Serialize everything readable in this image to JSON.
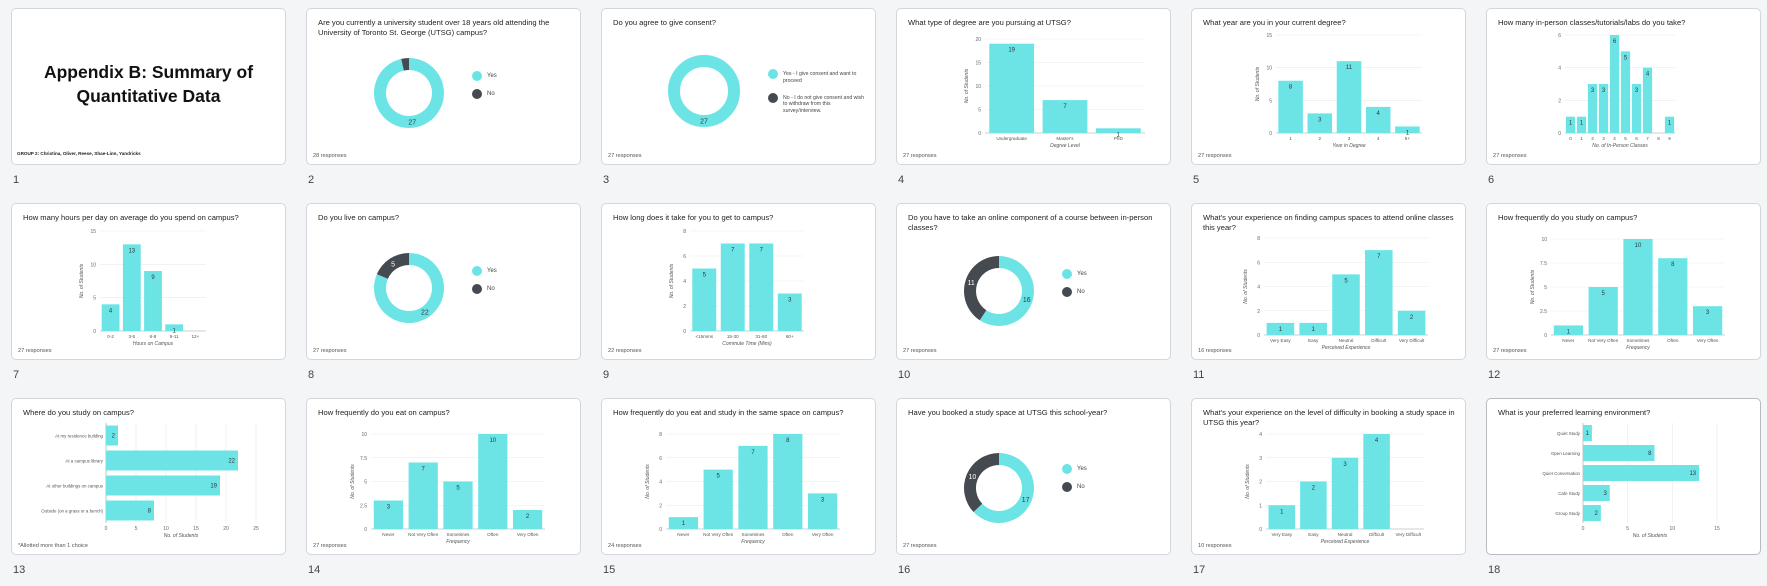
{
  "colors": {
    "teal": "#6ce4e6",
    "dark": "#454a51",
    "grid": "#e9eaec",
    "axis": "#9aa0a6"
  },
  "cover": {
    "title_line1": "Appendix B: Summary of",
    "title_line2": "Quantitative Data",
    "group": "GROUP 2: Christina, Oliver, Reese, Shae-Linn, Yandricks"
  },
  "legend_labels": {
    "yes": "Yes",
    "no": "No"
  },
  "slides": [
    {
      "number": "1"
    },
    {
      "number": "2",
      "question": "Are you currently a university student over 18 years old attending the University of Toronto St. George (UTSG) campus?",
      "responses": "28 responses"
    },
    {
      "number": "3",
      "question": "Do you agree to give consent?",
      "responses": "27 responses",
      "legend": [
        "Yes - I give consent and want to proceed",
        "No - I do not give consent and wish to withdraw from this survey/interview."
      ]
    },
    {
      "number": "4",
      "question": "What type of degree are you pursuing at UTSG?",
      "responses": "27 responses"
    },
    {
      "number": "5",
      "question": "What year are you in your current degree?",
      "responses": "27 responses"
    },
    {
      "number": "6",
      "question": "How many in-person classes/tutorials/labs do you take?",
      "responses": "27 responses"
    },
    {
      "number": "7",
      "question": "How many hours per day on average do you spend on campus?",
      "responses": "27 responses"
    },
    {
      "number": "8",
      "question": "Do you live on campus?",
      "responses": "27 responses"
    },
    {
      "number": "9",
      "question": "How long does it take for you to get to campus?",
      "responses": "22 responses"
    },
    {
      "number": "10",
      "question": "Do you have to take an online component of a course between in-person classes?",
      "responses": "27 responses"
    },
    {
      "number": "11",
      "question": "What's your experience on finding campus spaces to attend online classes this year?",
      "responses": "16 responses"
    },
    {
      "number": "12",
      "question": "How frequently do you study on campus?",
      "responses": "27 responses"
    },
    {
      "number": "13",
      "question": "Where do you study on campus?",
      "note": "*Allotted more than 1 choice"
    },
    {
      "number": "14",
      "question": "How frequently do you eat on campus?",
      "responses": "27 responses"
    },
    {
      "number": "15",
      "question": "How frequently do you eat and study in the same space on campus?",
      "responses": "24 responses"
    },
    {
      "number": "16",
      "question": "Have you booked a study space at UTSG this school-year?",
      "responses": "27 responses"
    },
    {
      "number": "17",
      "question": "What's your experience on the level of difficulty in booking a study space in UTSG this year?",
      "responses": "10 responses"
    },
    {
      "number": "18",
      "question": "What is your preferred learning environment?"
    }
  ],
  "chart_data": [
    {
      "slide": 2,
      "type": "pie",
      "labels": [
        "Yes",
        "No"
      ],
      "values": [
        27,
        1
      ],
      "data_labels": [
        "27",
        ""
      ]
    },
    {
      "slide": 3,
      "type": "pie",
      "labels": [
        "Yes - I give consent and want to proceed",
        "No - I do not give consent and wish to withdraw from this survey/interview."
      ],
      "values": [
        27,
        0
      ],
      "data_labels": [
        "27",
        ""
      ]
    },
    {
      "slide": 4,
      "type": "bar",
      "categories": [
        "Undergraduate",
        "Master's",
        "PhD"
      ],
      "values": [
        19,
        7,
        1
      ],
      "ylim": [
        0,
        20
      ],
      "yticks": [
        "0",
        "5",
        "10",
        "15",
        "20"
      ],
      "xlabel": "Degree Level",
      "ylabel": "No. of Students"
    },
    {
      "slide": 5,
      "type": "bar",
      "categories": [
        "1",
        "2",
        "3",
        "4",
        "5+"
      ],
      "values": [
        8,
        3,
        11,
        4,
        1
      ],
      "ylim": [
        0,
        15
      ],
      "yticks": [
        "0",
        "5",
        "10",
        "15"
      ],
      "xlabel": "Year in Degree",
      "ylabel": "No. of Students"
    },
    {
      "slide": 6,
      "type": "bar",
      "categories": [
        "0",
        "1",
        "2",
        "3",
        "4",
        "5",
        "6",
        "7",
        "8",
        "9"
      ],
      "values": [
        1,
        1,
        3,
        3,
        6,
        5,
        3,
        4,
        0,
        1
      ],
      "ylim": [
        0,
        6
      ],
      "yticks": [
        "0",
        "2",
        "4",
        "6"
      ],
      "xlabel": "No. of In-Person Classes",
      "ylabel": ""
    },
    {
      "slide": 7,
      "type": "bar",
      "categories": [
        "0-2",
        "3-5",
        "6-8",
        "9-11",
        "12+"
      ],
      "values": [
        4,
        13,
        9,
        1,
        0
      ],
      "ylim": [
        0,
        15
      ],
      "yticks": [
        "0",
        "5",
        "10",
        "15"
      ],
      "xlabel": "Hours on Campus",
      "ylabel": "No. of Students"
    },
    {
      "slide": 8,
      "type": "pie",
      "labels": [
        "Yes",
        "No"
      ],
      "values": [
        22,
        5
      ],
      "data_labels": [
        "22",
        "5"
      ]
    },
    {
      "slide": 9,
      "type": "bar",
      "categories": [
        "<15mins",
        "15-30",
        "31-60",
        "60+"
      ],
      "values": [
        5,
        7,
        7,
        3
      ],
      "ylim": [
        0,
        8
      ],
      "yticks": [
        "0",
        "2",
        "4",
        "6",
        "8"
      ],
      "xlabel": "Commute Time (Mins)",
      "ylabel": "No. of Students"
    },
    {
      "slide": 10,
      "type": "pie",
      "labels": [
        "Yes",
        "No"
      ],
      "values": [
        16,
        11
      ],
      "data_labels": [
        "16",
        "11"
      ]
    },
    {
      "slide": 11,
      "type": "bar",
      "categories": [
        "Very Easy",
        "Easy",
        "Neutral",
        "Difficult",
        "Very Difficult"
      ],
      "values": [
        1,
        1,
        5,
        7,
        2
      ],
      "ylim": [
        0,
        8
      ],
      "yticks": [
        "0",
        "2",
        "4",
        "6",
        "8"
      ],
      "xlabel": "Perceived Experience",
      "ylabel": "No. of Students"
    },
    {
      "slide": 12,
      "type": "bar",
      "categories": [
        "Never",
        "Not Very Often",
        "Sometimes",
        "Often",
        "Very Often"
      ],
      "values": [
        1,
        5,
        10,
        8,
        3
      ],
      "ylim": [
        0,
        10
      ],
      "yticks": [
        "0",
        "2.5",
        "5",
        "7.5",
        "10"
      ],
      "xlabel": "Frequency",
      "ylabel": "No. of Students"
    },
    {
      "slide": 13,
      "type": "hbar",
      "categories": [
        "At my residence building",
        "At a campus library",
        "At other buildings on campus",
        "Outside (on a grass or a bench)"
      ],
      "values": [
        2,
        22,
        19,
        8
      ],
      "xlim": [
        0,
        25
      ],
      "xticks": [
        "0",
        "5",
        "10",
        "15",
        "20",
        "25"
      ],
      "xlabel": "No. of Students"
    },
    {
      "slide": 14,
      "type": "bar",
      "categories": [
        "Never",
        "Not Very Often",
        "Sometimes",
        "Often",
        "Very Often"
      ],
      "values": [
        3,
        7,
        5,
        10,
        2
      ],
      "ylim": [
        0,
        10
      ],
      "yticks": [
        "0",
        "2.5",
        "5",
        "7.5",
        "10"
      ],
      "xlabel": "Frequency",
      "ylabel": "No. of Students"
    },
    {
      "slide": 15,
      "type": "bar",
      "categories": [
        "Never",
        "Not Very Often",
        "Sometimes",
        "Often",
        "Very Often"
      ],
      "values": [
        1,
        5,
        7,
        8,
        3
      ],
      "ylim": [
        0,
        8
      ],
      "yticks": [
        "0",
        "2",
        "4",
        "6",
        "8"
      ],
      "xlabel": "Frequency",
      "ylabel": "No. of Students"
    },
    {
      "slide": 16,
      "type": "pie",
      "labels": [
        "Yes",
        "No"
      ],
      "values": [
        17,
        10
      ],
      "data_labels": [
        "17",
        "10"
      ]
    },
    {
      "slide": 17,
      "type": "bar",
      "categories": [
        "Very Easy",
        "Easy",
        "Neutral",
        "Difficult",
        "Very Difficult"
      ],
      "values": [
        1,
        2,
        3,
        4,
        0
      ],
      "ylim": [
        0,
        4
      ],
      "yticks": [
        "0",
        "1",
        "2",
        "3",
        "4"
      ],
      "xlabel": "Perceived Experience",
      "ylabel": "No. of Students"
    },
    {
      "slide": 18,
      "type": "hbar",
      "categories": [
        "Quiet Study",
        "Open Learning",
        "Quiet Conversation",
        "Cafe Study",
        "Group Study"
      ],
      "values": [
        1,
        8,
        13,
        3,
        2
      ],
      "xlim": [
        0,
        15
      ],
      "xticks": [
        "0",
        "5",
        "10",
        "15"
      ],
      "xlabel": "No. of Students"
    }
  ]
}
